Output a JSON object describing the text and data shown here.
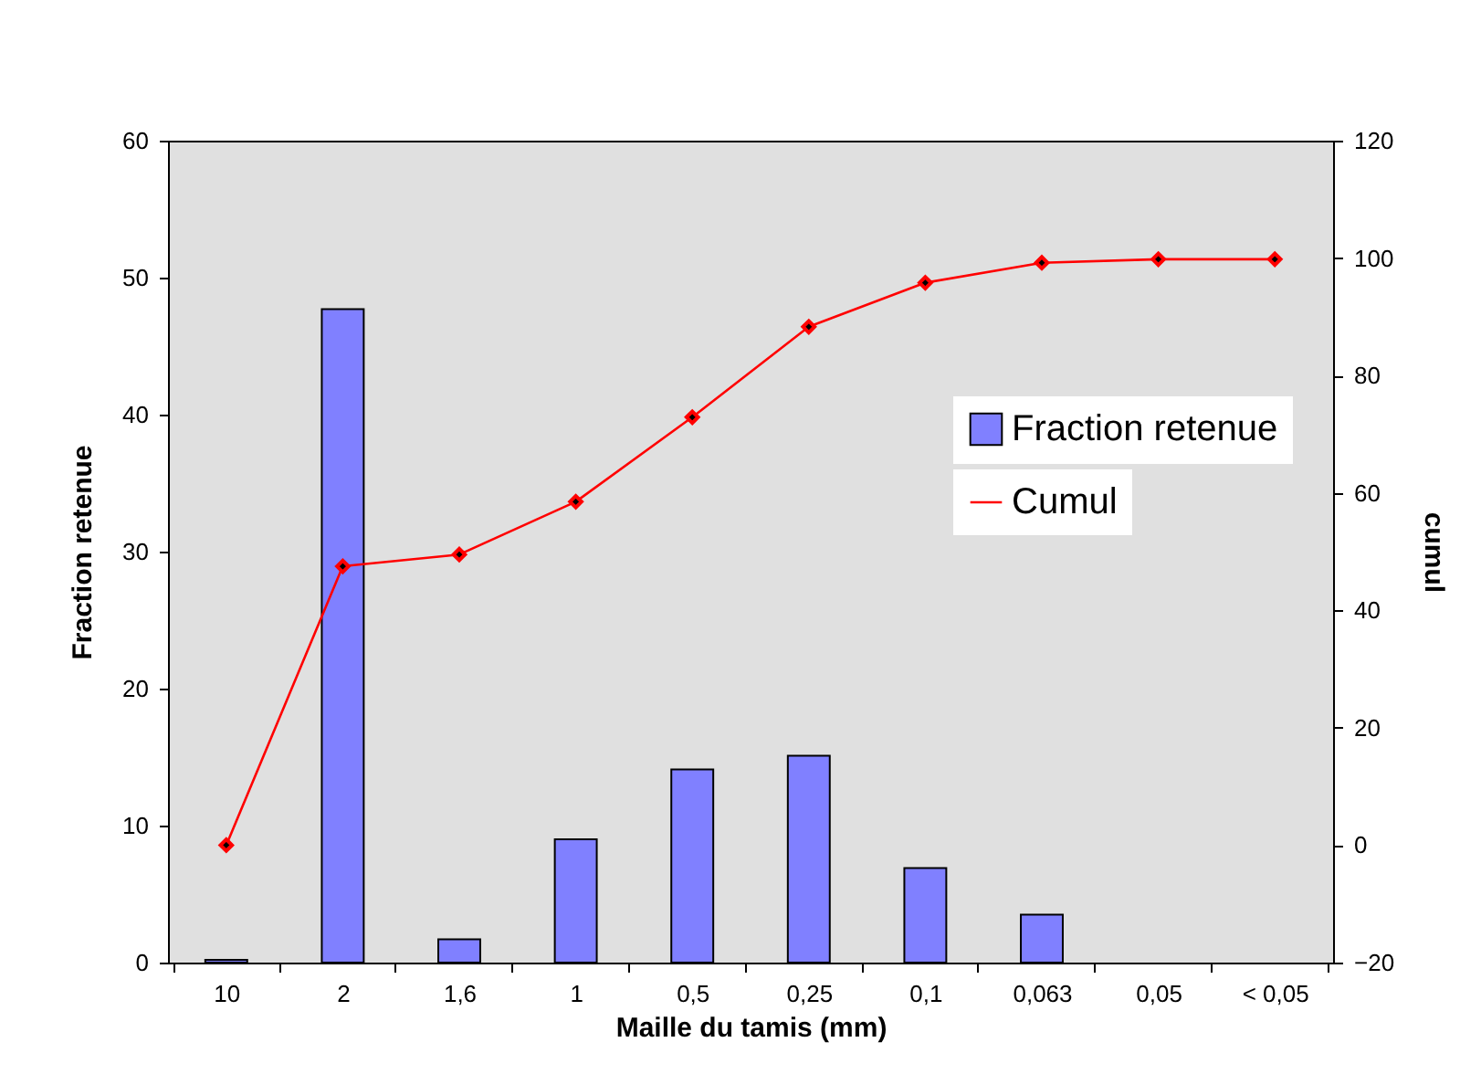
{
  "chart_data": {
    "type": "bar",
    "xlabel": "Maille du tamis (mm)",
    "ylabel": "Fraction retenue",
    "y2label": "cumul",
    "categories": [
      "10",
      "2",
      "1,6",
      "1",
      "0,5",
      "0,25",
      "0,1",
      "0,063",
      "0,05",
      "< 0,05"
    ],
    "series": [
      {
        "name": "Fraction retenue",
        "color": "#8080ff",
        "values": [
          0.2,
          47.7,
          1.7,
          9.0,
          14.1,
          15.1,
          6.9,
          3.5,
          null,
          null
        ]
      },
      {
        "name": "Cumul",
        "type": "line",
        "axis": "y2",
        "color": "#ff0000",
        "marker": "diamond",
        "values": [
          0,
          47.5,
          49.5,
          58.5,
          72.9,
          88.3,
          95.8,
          99.2,
          99.8,
          99.8
        ]
      }
    ],
    "ylim": [
      0,
      60
    ],
    "yticks": [
      0,
      10,
      20,
      30,
      40,
      50,
      60
    ],
    "y2lim": [
      -20,
      120
    ],
    "y2ticks": [
      -20,
      0,
      20,
      40,
      60,
      80,
      100,
      120
    ],
    "grid": false,
    "legend": "right"
  }
}
